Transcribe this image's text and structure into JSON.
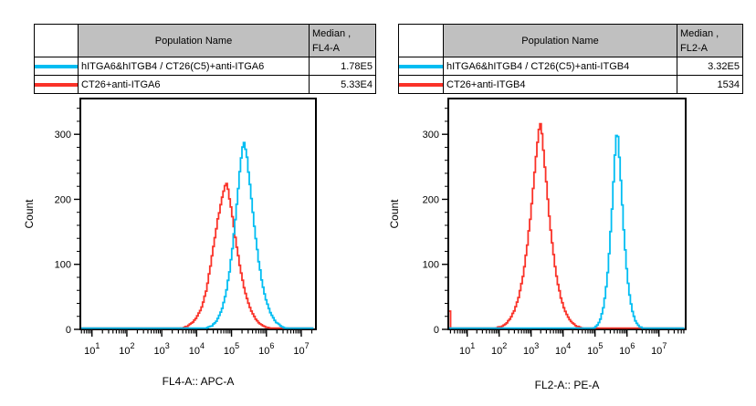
{
  "colors": {
    "cyan": "#00bdf2",
    "red": "#fa3228",
    "table_header_bg": "#c0c0c0",
    "axis": "#000000",
    "background": "#ffffff"
  },
  "tables": [
    {
      "population_header": "Population Name",
      "median_header_line1": "Median ,",
      "median_header_line2": "FL4-A",
      "rows": [
        {
          "color": "cyan",
          "name": "hITGA6&hITGB4 / CT26(C5)+anti-ITGA6",
          "median": "1.78E5"
        },
        {
          "color": "red",
          "name": "CT26+anti-ITGA6",
          "median": "5.33E4"
        }
      ]
    },
    {
      "population_header": "Population Name",
      "median_header_line1": "Median ,",
      "median_header_line2": "FL2-A",
      "rows": [
        {
          "color": "cyan",
          "name": "hITGA6&hITGB4 / CT26(C5)+anti-ITGB4",
          "median": "3.32E5"
        },
        {
          "color": "red",
          "name": "CT26+anti-ITGB4",
          "median": "1534"
        }
      ]
    }
  ],
  "chart_data": [
    {
      "type": "line",
      "title": "",
      "xlabel": "FL4-A:: APC-A",
      "ylabel": "Count",
      "x_scale": "log10",
      "x_tick_base": "10",
      "x_tick_exponents": [
        1,
        2,
        3,
        4,
        5,
        6,
        7
      ],
      "x_range_log10": [
        0.667,
        7.419
      ],
      "ylim": [
        0,
        355
      ],
      "yticks": [
        0,
        100,
        200,
        300
      ],
      "y_minor_step": 20,
      "baseline_count": 2,
      "series": [
        {
          "name": "CT26+anti-ITGA6",
          "color_key": "red",
          "median": 53300,
          "peak_log10x": 4.826,
          "peak_count": 223,
          "hw_left": 0.36,
          "hw_right": 0.35,
          "p": 1.5,
          "shoulder": {
            "log10x": 4.5,
            "count": 18,
            "sigma": 0.15
          }
        },
        {
          "name": "hITGA6&hITGB4 / CT26(C5)+anti-ITGA6",
          "color_key": "cyan",
          "median": 178000,
          "peak_log10x": 5.335,
          "peak_count": 290,
          "hw_left": 0.29,
          "hw_right": 0.33,
          "p": 1.5
        }
      ]
    },
    {
      "type": "line",
      "title": "",
      "xlabel": "FL2-A:: PE-A",
      "ylabel": "Count",
      "x_scale": "log10",
      "x_tick_base": "10",
      "x_tick_exponents": [
        1,
        2,
        3,
        4,
        5,
        6,
        7
      ],
      "x_range_log10": [
        0.409,
        7.837
      ],
      "ylim": [
        0,
        355
      ],
      "yticks": [
        0,
        100,
        200,
        300
      ],
      "y_minor_step": 20,
      "baseline_count": 2,
      "series": [
        {
          "name": "CT26+anti-ITGB4",
          "color_key": "red",
          "median": 1534,
          "peak_log10x": 3.26,
          "peak_count": 318,
          "hw_left": 0.334,
          "hw_right": 0.32,
          "p": 1.4,
          "edge_spike_count": 28
        },
        {
          "name": "hITGA6&hITGB4 / CT26(C5)+anti-ITGB4",
          "color_key": "cyan",
          "median": 332000,
          "peak_log10x": 5.67,
          "peak_count": 305,
          "hw_left": 0.2,
          "hw_right": 0.21,
          "p": 1.5
        }
      ]
    }
  ]
}
